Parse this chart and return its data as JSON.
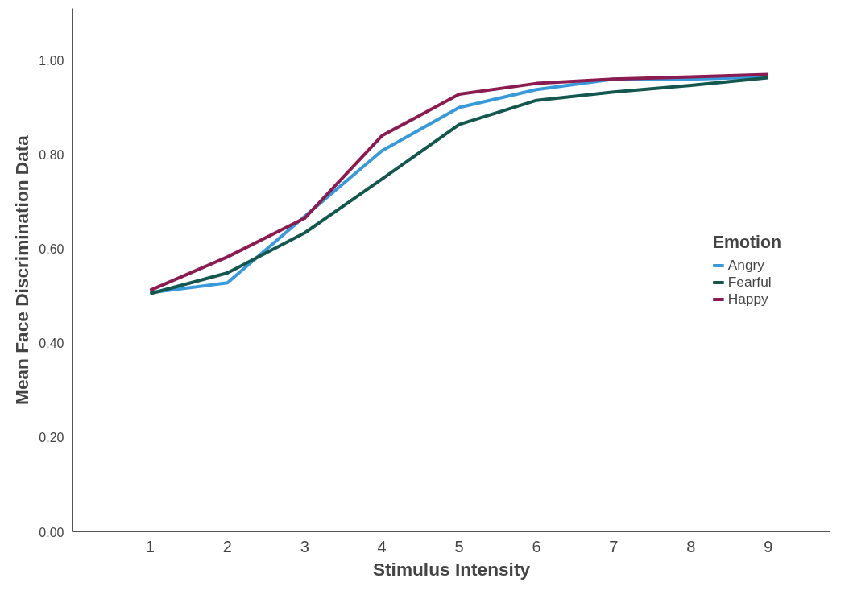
{
  "chart_data": {
    "type": "line",
    "xlabel": "Stimulus Intensity",
    "ylabel": "Mean Face Discrimination Data",
    "legend_title": "Emotion",
    "x": [
      1,
      2,
      3,
      4,
      5,
      6,
      7,
      8,
      9
    ],
    "series": [
      {
        "name": "Angry",
        "color": "#3a9ad9",
        "values": [
          0.507,
          0.528,
          0.669,
          0.808,
          0.9,
          0.938,
          0.96,
          0.96,
          0.965
        ]
      },
      {
        "name": "Fearful",
        "color": "#14574f",
        "values": [
          0.505,
          0.549,
          0.634,
          0.748,
          0.864,
          0.915,
          0.933,
          0.947,
          0.963
        ]
      },
      {
        "name": "Happy",
        "color": "#8b1c52",
        "values": [
          0.512,
          0.583,
          0.665,
          0.84,
          0.928,
          0.951,
          0.96,
          0.965,
          0.97
        ]
      }
    ],
    "xlim": [
      0,
      9.8
    ],
    "xticks": [
      1,
      2,
      3,
      4,
      5,
      6,
      7,
      8,
      9
    ],
    "ylim": [
      0,
      1.11
    ],
    "yticks": [
      {
        "value": 0,
        "label": "0.00"
      },
      {
        "value": 0.2,
        "label": "0.20"
      },
      {
        "value": 0.4,
        "label": "0.40"
      },
      {
        "value": 0.6,
        "label": "0.60"
      },
      {
        "value": 0.8,
        "label": "0.80"
      },
      {
        "value": 1.0,
        "label": "1.00"
      }
    ],
    "grid": false,
    "legend": "right",
    "line_style": "solid",
    "marker": "none"
  }
}
